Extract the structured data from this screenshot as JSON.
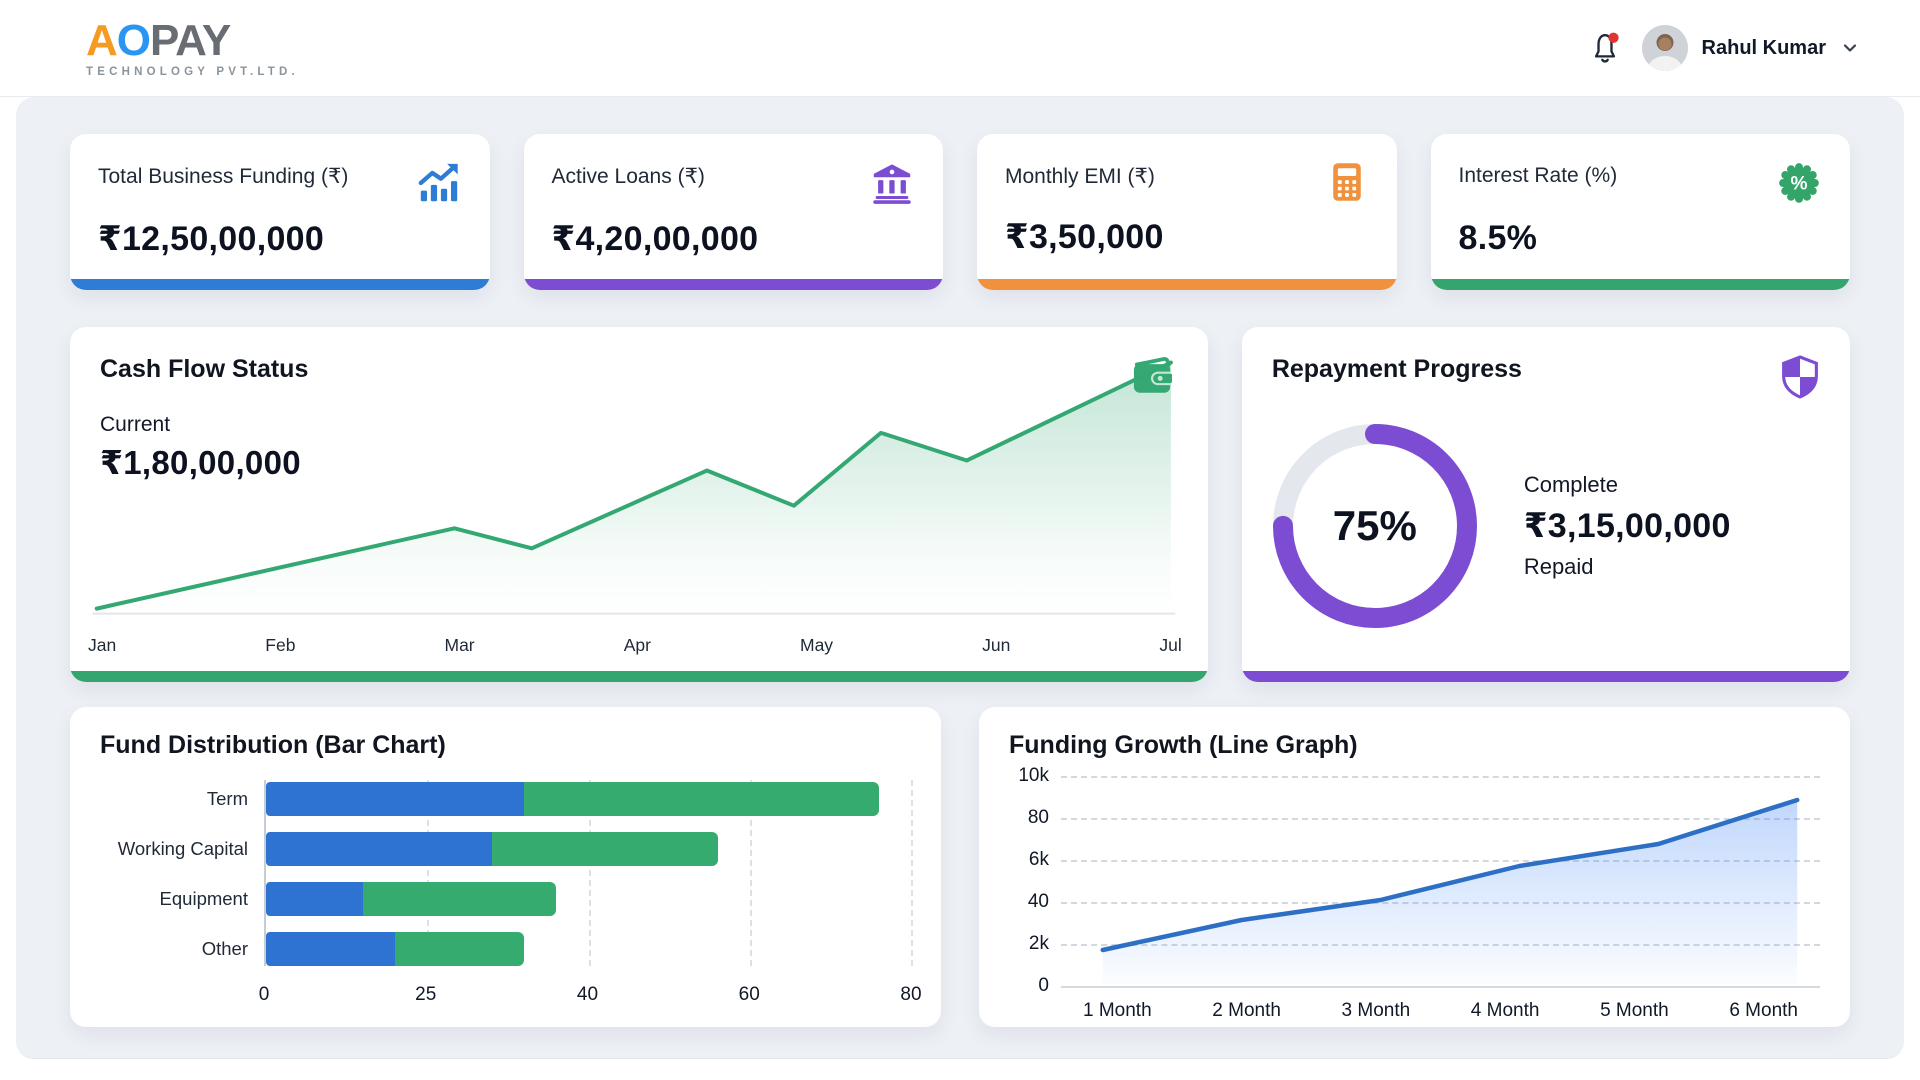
{
  "header": {
    "logo": {
      "a": "A",
      "o": "O",
      "pay": "PAY",
      "subtitle": "TECHNOLOGY PVT.LTD."
    },
    "notifications": {
      "unread_dot": true
    },
    "user": {
      "name": "Rahul Kumar"
    }
  },
  "stats": {
    "items": [
      {
        "label": "Total Business Funding (₹)",
        "value": "₹12,50,00,000",
        "icon": "bar-chart-trending-up",
        "accent": "#2e7cd6"
      },
      {
        "label": "Active Loans (₹)",
        "value": "₹4,20,00,000",
        "icon": "bank",
        "accent": "#7c4dd3"
      },
      {
        "label": "Monthly EMI (₹)",
        "value": "₹3,50,000",
        "icon": "calculator",
        "accent": "#f0923d"
      },
      {
        "label": "Interest Rate (%)",
        "value": "8.5%",
        "icon": "percent-badge",
        "accent": "#34a56f"
      }
    ]
  },
  "cash_flow": {
    "title": "Cash Flow Status",
    "icon": "wallet",
    "current_label": "Current",
    "current_value": "₹1,80,00,000",
    "accent": "#34a56f"
  },
  "repayment": {
    "title": "Repayment Progress",
    "icon": "shield",
    "percent": 75,
    "percent_label": "75%",
    "complete_label": "Complete",
    "amount": "₹3,15,00,000",
    "repaid_label": "Repaid",
    "accent": "#7c4dd3"
  },
  "fund_distribution": {
    "title": "Fund Distribution (Bar Chart)"
  },
  "funding_growth": {
    "title": "Funding Growth (Line Graph)"
  },
  "chart_data": [
    {
      "id": "cash_flow",
      "type": "area",
      "title": "Cash Flow Status",
      "categories": [
        "Jan",
        "Feb",
        "Mar",
        "Apr",
        "May",
        "Jun",
        "Jul"
      ],
      "points": [
        {
          "x": 0.0,
          "v": 2
        },
        {
          "x": 0.333,
          "v": 34
        },
        {
          "x": 0.405,
          "v": 26
        },
        {
          "x": 0.568,
          "v": 57
        },
        {
          "x": 0.649,
          "v": 43
        },
        {
          "x": 0.73,
          "v": 72
        },
        {
          "x": 0.81,
          "v": 61
        },
        {
          "x": 1.0,
          "v": 100
        }
      ],
      "annotation": "Current ₹1,80,00,000",
      "line_color": "#34a873",
      "grid": false,
      "legend": "none"
    },
    {
      "id": "repayment_progress",
      "type": "donut",
      "title": "Repayment Progress",
      "percent": 75,
      "center_label": "75%",
      "progress_color": "#7c4dd3",
      "track_color": "#e4e7ed",
      "annotation": "Complete ₹3,15,00,000 Repaid"
    },
    {
      "id": "fund_distribution",
      "type": "bar",
      "title": "Fund Distribution (Bar Chart)",
      "orientation": "horizontal-stacked",
      "categories": [
        "Term",
        "Working Capital",
        "Equipment",
        "Other"
      ],
      "series": [
        {
          "name": "blue",
          "color": "#2e72d2",
          "values": [
            34,
            31,
            15,
            20
          ]
        },
        {
          "name": "green",
          "color": "#35ab6f",
          "values": [
            42,
            25,
            22,
            14
          ]
        }
      ],
      "x_ticks": [
        0,
        25,
        40,
        60,
        80
      ],
      "xlabel": "",
      "ylabel": "",
      "grid": true,
      "legend": "none"
    },
    {
      "id": "funding_growth",
      "type": "line",
      "title": "Funding Growth (Line Graph)",
      "categories": [
        "1 Month",
        "2 Month",
        "3 Month",
        "4 Month",
        "5 Month",
        "6 Month"
      ],
      "values": [
        1.7,
        3.2,
        4.2,
        5.9,
        7.0,
        9.2
      ],
      "y_ticks_top_to_bottom": [
        "10k",
        "80",
        "6k",
        "40",
        "2k",
        "0"
      ],
      "ylim": [
        0,
        10
      ],
      "line_color": "#2d6fc4",
      "grid": true,
      "legend": "none"
    }
  ],
  "colors": {
    "background_panel": "#edf0f5",
    "card": "#ffffff",
    "accent_blue": "#2e7cd6",
    "accent_purple": "#7c4dd3",
    "accent_orange": "#f0923d",
    "accent_green": "#34a56f",
    "notification_dot": "#e0342f"
  }
}
